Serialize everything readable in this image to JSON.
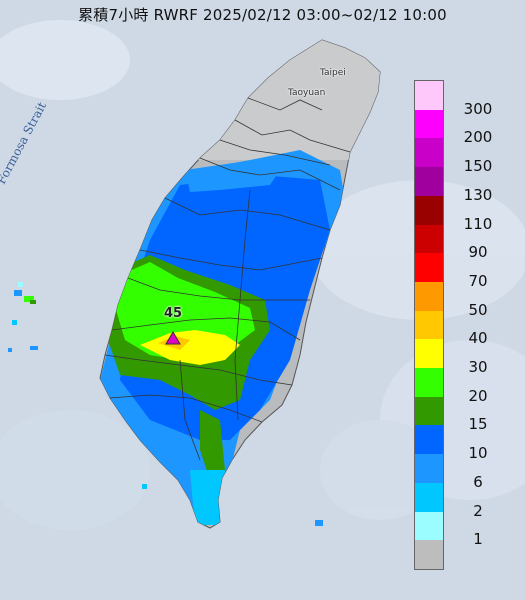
{
  "title": "累積7小時 RWRF 2025/02/12 03:00~02/12 10:00",
  "strait_label": "Formosa Strait",
  "cities": {
    "taipei": "Taipei",
    "taoyuan": "Taoyuan"
  },
  "max_value": "45",
  "max_marker_icon": "triangle-marker-icon",
  "legend": [
    {
      "label": "300",
      "color": "#fec8fb"
    },
    {
      "label": "200",
      "color": "#fd00fd"
    },
    {
      "label": "150",
      "color": "#c800c8"
    },
    {
      "label": "130",
      "color": "#a0009e"
    },
    {
      "label": "110",
      "color": "#990000"
    },
    {
      "label": "90",
      "color": "#cc0000"
    },
    {
      "label": "70",
      "color": "#ff0000"
    },
    {
      "label": "50",
      "color": "#ff9900"
    },
    {
      "label": "40",
      "color": "#ffc800"
    },
    {
      "label": "30",
      "color": "#ffff00"
    },
    {
      "label": "20",
      "color": "#33ff00"
    },
    {
      "label": "15",
      "color": "#339900"
    },
    {
      "label": "10",
      "color": "#0066ff"
    },
    {
      "label": "6",
      "color": "#1e96ff"
    },
    {
      "label": "2",
      "color": "#00c8ff"
    },
    {
      "label": "1",
      "color": "#9bfdff"
    },
    {
      "label": "",
      "color": "#bdbdbd"
    }
  ]
}
